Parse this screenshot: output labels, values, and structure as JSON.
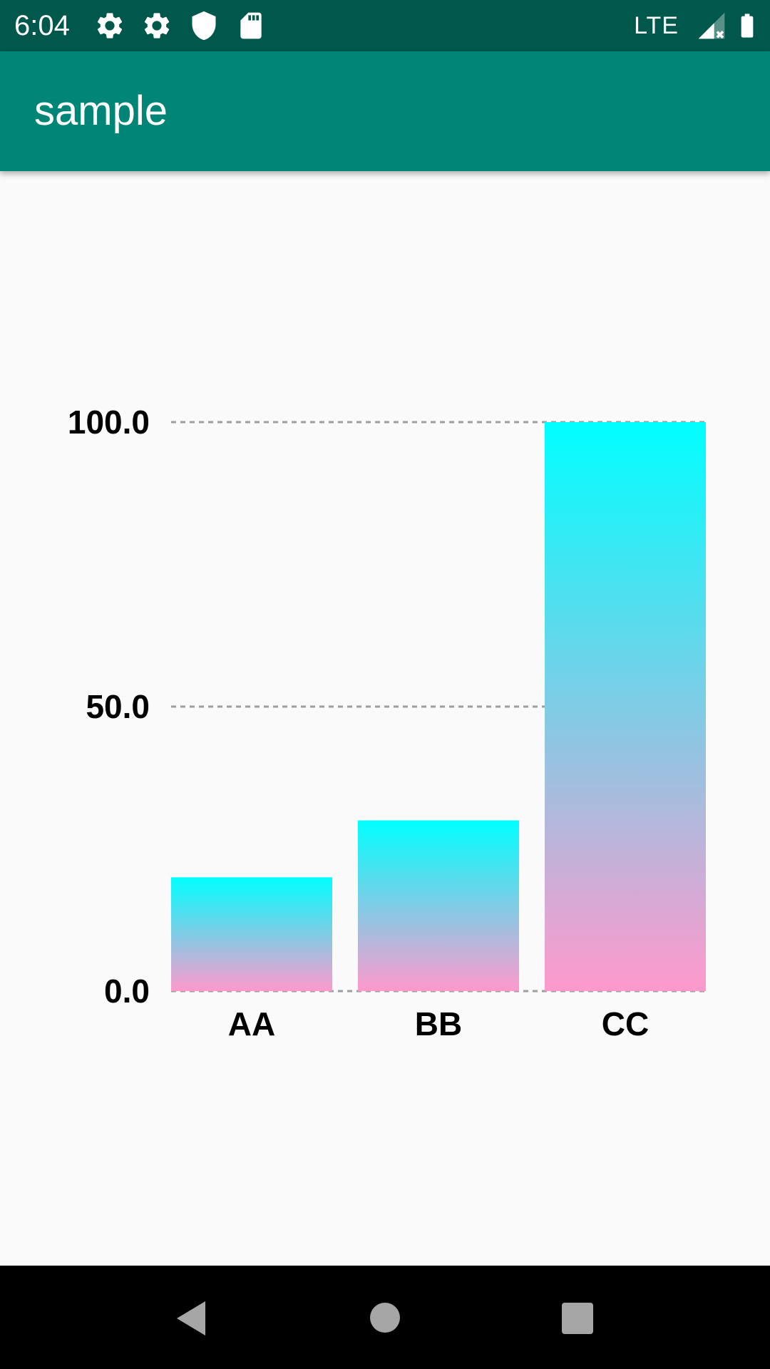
{
  "status_bar": {
    "time": "6:04",
    "network": "LTE",
    "icons": [
      "settings-icon",
      "settings-icon",
      "shield-icon",
      "sd-card-icon",
      "signal-icon",
      "battery-icon"
    ]
  },
  "app_bar": {
    "title": "sample",
    "color": "#008577"
  },
  "chart_data": {
    "type": "bar",
    "categories": [
      "AA",
      "BB",
      "CC"
    ],
    "values": [
      20,
      30,
      100
    ],
    "y_ticks": [
      "0.0",
      "50.0",
      "100.0"
    ],
    "ylim": [
      0,
      100
    ],
    "grid": "dashed horizontal",
    "gradient": {
      "top": "#00ffff",
      "bottom": "#ff99cc"
    },
    "title": "",
    "xlabel": "",
    "ylabel": ""
  },
  "nav_bar": {
    "buttons": [
      "back-icon",
      "home-icon",
      "recents-icon"
    ]
  }
}
